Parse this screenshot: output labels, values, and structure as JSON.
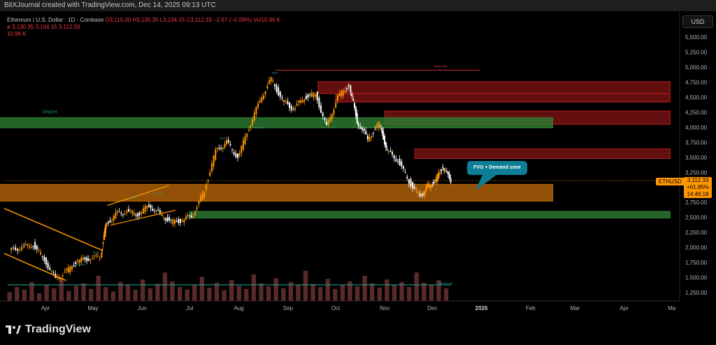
{
  "header": {
    "credit": "BitXJournal created with TradingView.com, Dec 14, 2025 09:13 UTC"
  },
  "legend": {
    "symbol": "Ethereum / U.S. Dollar · 1D · Coinbase",
    "ohlc": "O3,115.00 H3,130.35 L3,104.15 C3,112.33 −2.67 (−0.09%) Vol10.96 K",
    "ma_line": "ø  3,130.35  3,104.15  3,112.33",
    "volume": "10.96 K"
  },
  "toolbar": {
    "currency": "USD"
  },
  "price_tag": {
    "symbol": "ETHUSD",
    "price": "3,112.33",
    "change": "+61.85%",
    "countdown": "14:46:18"
  },
  "callout": {
    "text": "FVG + Demand zone"
  },
  "branding": {
    "logo_text": "TradingView"
  },
  "colors": {
    "background": "#000000",
    "up": "#ff9800",
    "down": "#ffffff",
    "supply_zone": "#b71c1c",
    "demand_green": "#2e7d32",
    "fvg_orange": "#b8650a",
    "callout": "#0e7d96",
    "trendline": "#ff9800",
    "volume": "#5a2a2a"
  },
  "chart_data": {
    "type": "candlestick",
    "title": "Ethereum / U.S. Dollar · 1D · Coinbase",
    "y_axis_labels": [
      "5,500.00",
      "5,250.00",
      "5,000.00",
      "4,750.00",
      "4,500.00",
      "4,250.00",
      "4,000.00",
      "3,750.00",
      "3,500.00",
      "3,250.00",
      "3,000.00",
      "2,750.00",
      "2,500.00",
      "2,250.00",
      "2,000.00",
      "1,750.00",
      "1,500.00",
      "1,250.00"
    ],
    "ylim": [
      1150,
      5700
    ],
    "x_axis_labels": [
      "Apr",
      "May",
      "Jun",
      "Jul",
      "Aug",
      "Sep",
      "Oct",
      "Nov",
      "Dec",
      "2026",
      "Feb",
      "Mar",
      "Apr",
      "Ma"
    ],
    "price_path": [
      [
        "2025-03-10",
        1950
      ],
      [
        "2025-03-18",
        2000
      ],
      [
        "2025-03-25",
        2050
      ],
      [
        "2025-04-01",
        1800
      ],
      [
        "2025-04-08",
        1480
      ],
      [
        "2025-04-15",
        1600
      ],
      [
        "2025-04-22",
        1780
      ],
      [
        "2025-04-29",
        1810
      ],
      [
        "2025-05-06",
        1850
      ],
      [
        "2025-05-09",
        2350
      ],
      [
        "2025-05-16",
        2550
      ],
      [
        "2025-05-23",
        2600
      ],
      [
        "2025-05-30",
        2550
      ],
      [
        "2025-06-06",
        2700
      ],
      [
        "2025-06-13",
        2550
      ],
      [
        "2025-06-20",
        2420
      ],
      [
        "2025-06-27",
        2450
      ],
      [
        "2025-07-04",
        2550
      ],
      [
        "2025-07-11",
        2950
      ],
      [
        "2025-07-18",
        3600
      ],
      [
        "2025-07-25",
        3750
      ],
      [
        "2025-08-01",
        3500
      ],
      [
        "2025-08-08",
        4000
      ],
      [
        "2025-08-15",
        4450
      ],
      [
        "2025-08-22",
        4800
      ],
      [
        "2025-08-29",
        4450
      ],
      [
        "2025-09-05",
        4300
      ],
      [
        "2025-09-12",
        4500
      ],
      [
        "2025-09-19",
        4550
      ],
      [
        "2025-09-26",
        4000
      ],
      [
        "2025-10-03",
        4500
      ],
      [
        "2025-10-10",
        4700
      ],
      [
        "2025-10-15",
        4100
      ],
      [
        "2025-10-22",
        3800
      ],
      [
        "2025-10-29",
        4050
      ],
      [
        "2025-11-03",
        3600
      ],
      [
        "2025-11-10",
        3450
      ],
      [
        "2025-11-17",
        3100
      ],
      [
        "2025-11-24",
        2850
      ],
      [
        "2025-11-28",
        3000
      ],
      [
        "2025-12-03",
        3100
      ],
      [
        "2025-12-08",
        3350
      ],
      [
        "2025-12-13",
        3112
      ]
    ],
    "zones": [
      {
        "name": "supply",
        "from": "2025-09-20",
        "to": "2026-04-30",
        "low": 4560,
        "high": 4760
      },
      {
        "name": "supply",
        "from": "2025-10-01",
        "to": "2026-04-30",
        "low": 4420,
        "high": 4560
      },
      {
        "name": "supply",
        "from": "2025-11-01",
        "to": "2026-04-30",
        "low": 4050,
        "high": 4270
      },
      {
        "name": "supply",
        "from": "2025-11-20",
        "to": "2026-04-30",
        "low": 3480,
        "high": 3640
      },
      {
        "name": "demand",
        "from": "2025-03-01",
        "to": "2026-02-15",
        "low": 3990,
        "high": 4160
      },
      {
        "name": "fvg",
        "from": "2025-03-01",
        "to": "2026-02-15",
        "low": 2770,
        "high": 3050
      },
      {
        "name": "demand",
        "from": "2025-07-01",
        "to": "2026-04-30",
        "low": 2490,
        "high": 2600
      }
    ],
    "labels": [
      "CHoCH",
      "BOS",
      "CHoCH",
      "BOS",
      "CHoCH",
      "BOS",
      "CHoCH",
      "BOS",
      "Weak High",
      "Strong Low"
    ],
    "last_price": 3112.33,
    "grid": false,
    "legend": "top-left"
  }
}
